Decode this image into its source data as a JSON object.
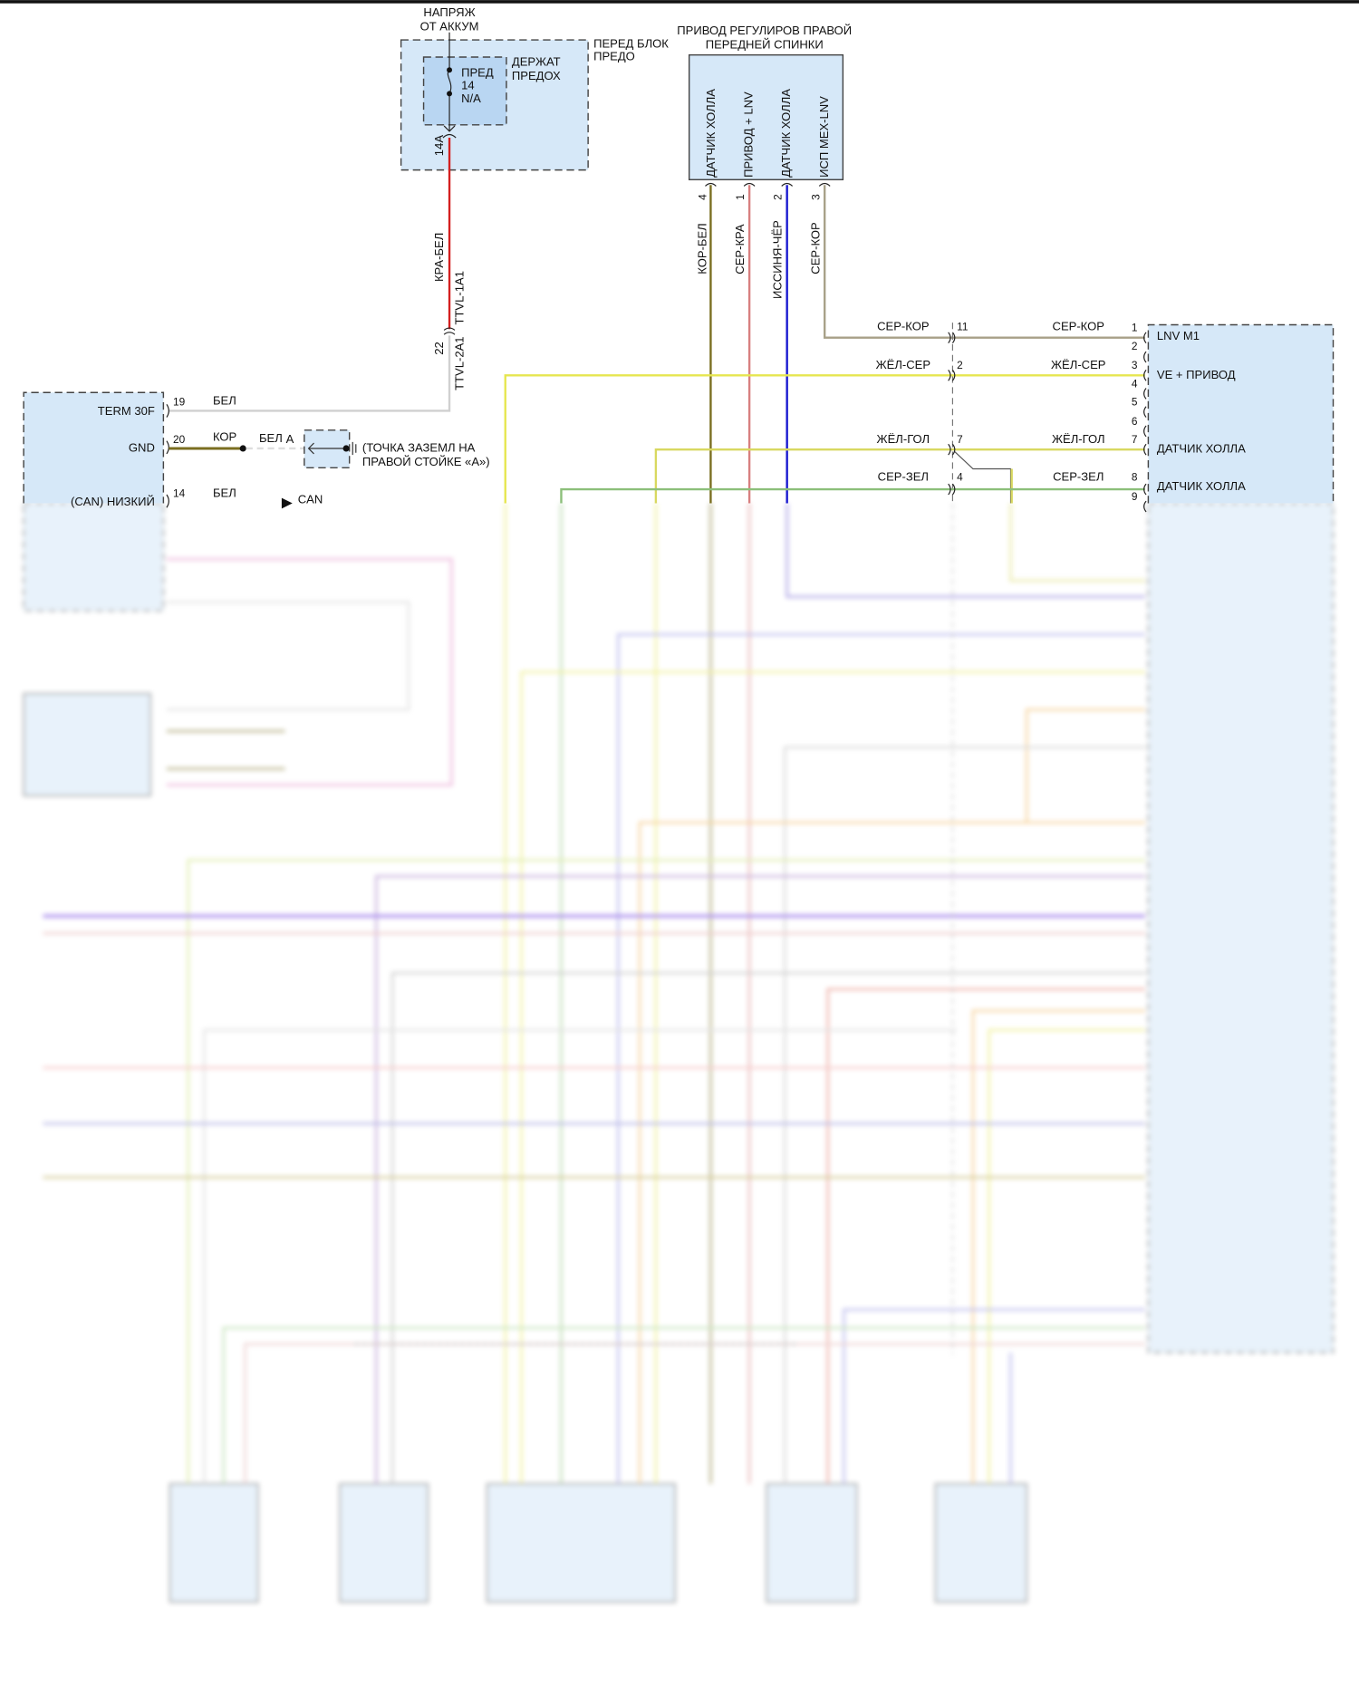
{
  "fuse_block": {
    "supply_label_line1": "НАПРЯЖ",
    "supply_label_line2": "ОТ АККУМ",
    "block_label_line1": "ПЕРЕД БЛОК",
    "block_label_line2": "ПРЕДО",
    "holder_label_line1": "ДЕРЖАТ",
    "holder_label_line2": "ПРЕДОХ",
    "fuse_line1": "ПРЕД",
    "fuse_line2": "14",
    "fuse_line3": "N/A",
    "pin": "14A"
  },
  "supply_wire": {
    "color_label": "КРА-БЕЛ",
    "connector_top": "TTVL-1A1",
    "connector_bottom": "TTVL-2A1",
    "pin": "22",
    "color": "#d42020"
  },
  "actuator": {
    "title_line1": "ПРИВОД РЕГУЛИРОВ ПРАВОЙ",
    "title_line2": "ПЕРЕДНЕЙ СПИНКИ",
    "pins": [
      {
        "pin": "4",
        "label": "ДАТЧИК ХОЛЛА",
        "wire": "КОР-БЕЛ",
        "color": "#8a7a30"
      },
      {
        "pin": "1",
        "label": "ПРИВОД + LNV",
        "wire": "СЕР-КРА",
        "color": "#d88080"
      },
      {
        "pin": "2",
        "label": "ДАТЧИК ХОЛЛА",
        "wire": "ИССИНЯ-ЧЁР",
        "color": "#1a1ad0"
      },
      {
        "pin": "3",
        "label": "ИСП МЕХ-LNV",
        "wire": "СЕР-КОР",
        "color": "#a8a088"
      }
    ]
  },
  "left_module": {
    "pins": [
      {
        "pin": "19",
        "label": "TERM 30F",
        "wire": "БЕЛ"
      },
      {
        "pin": "20",
        "label": "GND",
        "wire": "КОР"
      },
      {
        "pin": "14",
        "label": "(CAN) НИЗКИЙ",
        "wire": "БЕЛ"
      }
    ],
    "ground_wire": "БЕЛ",
    "ground_splice": "A",
    "ground_label_line1": "(ТОЧКА ЗАЗЕМЛ НА",
    "ground_label_line2": "ПРАВОЙ СТОЙКЕ «А»)",
    "can_label": "CAN"
  },
  "right_module": {
    "rows": [
      {
        "inline_pin": "11",
        "wire_left": "СЕР-КОР",
        "wire_right": "СЕР-КОР",
        "pin": "1",
        "label": "LNV M1"
      },
      {
        "inline_pin": "2",
        "wire_left": "ЖЁЛ-СЕР",
        "wire_right": "ЖЁЛ-СЕР",
        "pin": "3",
        "label": "VE + ПРИВОД"
      },
      {
        "inline_pin": "7",
        "wire_left": "ЖЁЛ-ГОЛ",
        "wire_right": "ЖЁЛ-ГОЛ",
        "pin": "7",
        "label": "ДАТЧИК ХОЛЛА"
      },
      {
        "inline_pin": "4",
        "wire_left": "СЕР-ЗЕЛ",
        "wire_right": "СЕР-ЗЕЛ",
        "pin": "8",
        "label": "ДАТЧИК ХОЛЛА"
      }
    ],
    "unused_pins": [
      "2",
      "4",
      "5",
      "6",
      "9"
    ]
  },
  "colors": {
    "module_fill": "#d6e8f8",
    "yellow": "#e6e650",
    "green": "#8cbf7a",
    "gray": "#c8c8c8",
    "olive": "#7a6e20"
  }
}
